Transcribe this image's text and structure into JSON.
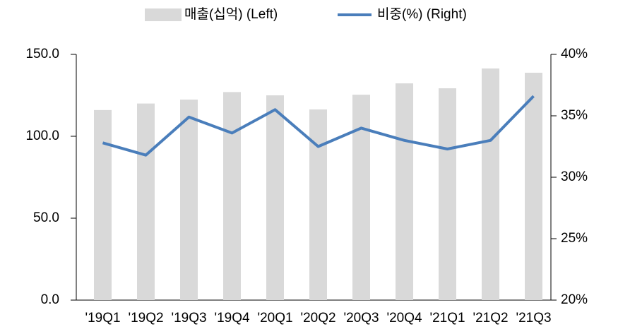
{
  "chart_data": {
    "type": "bar_line",
    "categories": [
      "'19Q1",
      "'19Q2",
      "'19Q3",
      "'19Q4",
      "'20Q1",
      "'20Q2",
      "'20Q3",
      "'20Q4",
      "'21Q1",
      "'21Q2",
      "'21Q3"
    ],
    "series": [
      {
        "name": "매출(십억) (Left)",
        "color": "#d9d9d9",
        "type": "bar",
        "values": [
          116,
          120,
          122.4,
          127,
          125,
          116.4,
          125.4,
          132.3,
          129.3,
          141.4,
          138.8
        ]
      },
      {
        "name": "비중(%) (Right)",
        "color": "#4a7ebb",
        "type": "line",
        "axis": "y2",
        "values": [
          32.8,
          31.8,
          34.9,
          33.6,
          35.5,
          32.5,
          34.0,
          33.0,
          32.3,
          33.0,
          36.6
        ]
      }
    ],
    "ylim": [
      0,
      150
    ],
    "yticks": [
      {
        "value": 0,
        "label": "0.0"
      },
      {
        "value": 50,
        "label": "50.0"
      },
      {
        "value": 100,
        "label": "100.0"
      },
      {
        "value": 150,
        "label": "150.0"
      }
    ],
    "y2lim": [
      20,
      40
    ],
    "y2ticks": [
      {
        "value": 20,
        "label": "20%"
      },
      {
        "value": 25,
        "label": "25%"
      },
      {
        "value": 30,
        "label": "30%"
      },
      {
        "value": 35,
        "label": "35%"
      },
      {
        "value": 40,
        "label": "40%"
      }
    ],
    "legend": "top"
  }
}
